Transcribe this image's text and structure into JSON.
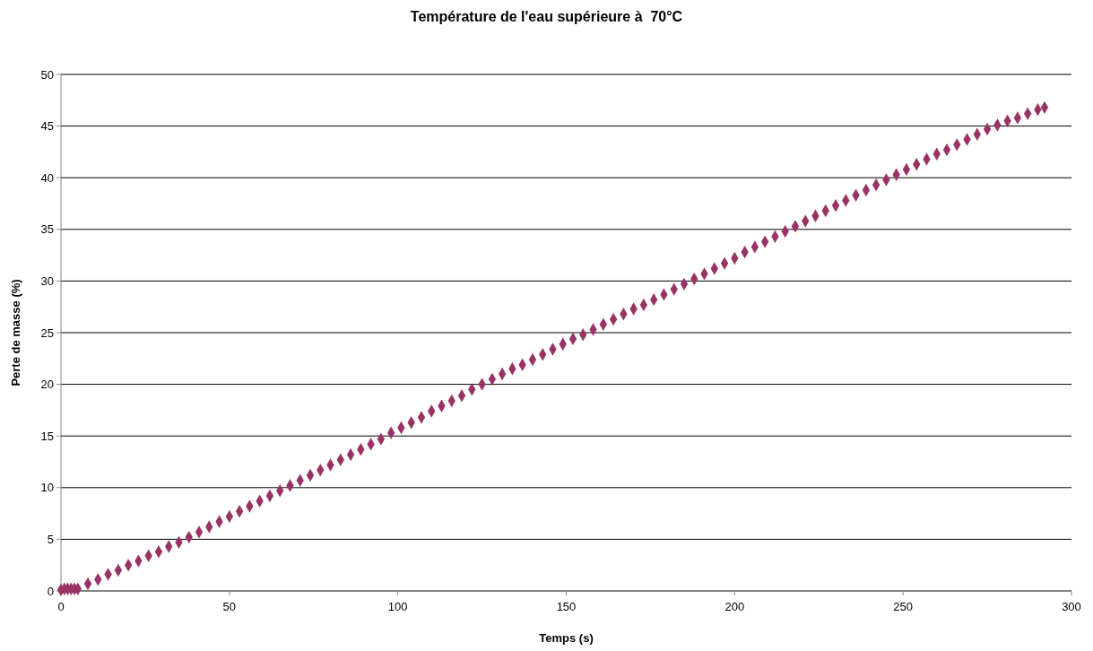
{
  "chart_data": {
    "type": "scatter",
    "title": "Température de l'eau supérieure à  70°C",
    "xlabel": "Temps (s)",
    "ylabel": "Perte de masse (%)",
    "xlim": [
      0,
      300
    ],
    "xticks": [
      0,
      50,
      100,
      150,
      200,
      250,
      300
    ],
    "ylim": [
      0,
      50
    ],
    "yticks": [
      0,
      5,
      10,
      15,
      20,
      25,
      30,
      35,
      40,
      45,
      50
    ],
    "grid": "y",
    "marker": "diamond",
    "series": [
      {
        "color": "#993366",
        "x": [
          0,
          1,
          2,
          3,
          4,
          5,
          8,
          11,
          14,
          17,
          20,
          23,
          26,
          29,
          32,
          35,
          38,
          41,
          44,
          47,
          50,
          53,
          56,
          59,
          62,
          65,
          68,
          71,
          74,
          77,
          80,
          83,
          86,
          89,
          92,
          95,
          98,
          101,
          104,
          107,
          110,
          113,
          116,
          119,
          122,
          125,
          128,
          131,
          134,
          137,
          140,
          143,
          146,
          149,
          152,
          155,
          158,
          161,
          164,
          167,
          170,
          173,
          176,
          179,
          182,
          185,
          188,
          191,
          194,
          197,
          200,
          203,
          206,
          209,
          212,
          215,
          218,
          221,
          224,
          227,
          230,
          233,
          236,
          239,
          242,
          245,
          248,
          251,
          254,
          257,
          260,
          263,
          266,
          269,
          272,
          275,
          278,
          281,
          284,
          287,
          290,
          292
        ],
        "values": [
          0.1,
          0.2,
          0.2,
          0.2,
          0.2,
          0.2,
          0.7,
          1.1,
          1.6,
          2.0,
          2.5,
          2.9,
          3.4,
          3.8,
          4.3,
          4.7,
          5.2,
          5.7,
          6.2,
          6.7,
          7.2,
          7.7,
          8.2,
          8.7,
          9.2,
          9.7,
          10.2,
          10.7,
          11.2,
          11.7,
          12.2,
          12.7,
          13.2,
          13.7,
          14.2,
          14.7,
          15.3,
          15.8,
          16.3,
          16.8,
          17.4,
          17.9,
          18.4,
          18.9,
          19.5,
          20.0,
          20.5,
          21.0,
          21.5,
          21.9,
          22.4,
          22.9,
          23.4,
          23.9,
          24.4,
          24.8,
          25.3,
          25.8,
          26.3,
          26.8,
          27.3,
          27.7,
          28.2,
          28.7,
          29.2,
          29.7,
          30.2,
          30.7,
          31.2,
          31.7,
          32.2,
          32.8,
          33.3,
          33.8,
          34.3,
          34.8,
          35.3,
          35.8,
          36.3,
          36.8,
          37.3,
          37.8,
          38.3,
          38.8,
          39.3,
          39.8,
          40.3,
          40.8,
          41.3,
          41.8,
          42.3,
          42.7,
          43.2,
          43.7,
          44.2,
          44.7,
          45.1,
          45.5,
          45.8,
          46.2,
          46.6,
          46.8
        ]
      }
    ]
  }
}
